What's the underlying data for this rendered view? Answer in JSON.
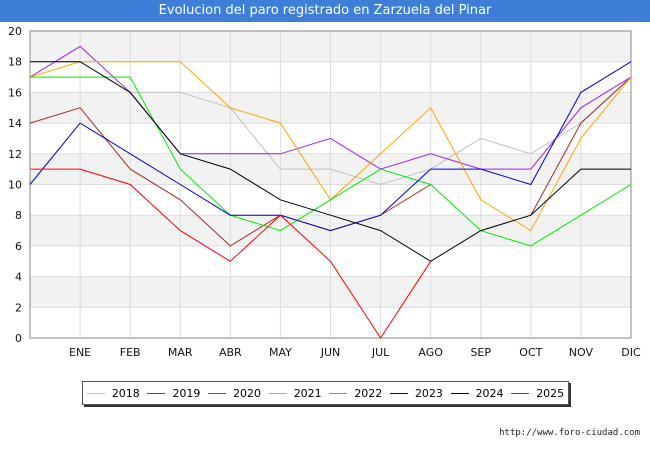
{
  "header": {
    "title": "Evolucion del paro registrado en Zarzuela del Pinar"
  },
  "footer": {
    "source": "http://www.foro-ciudad.com"
  },
  "chart_data": {
    "type": "line",
    "title": "Evolucion del paro registrado en Zarzuela del Pinar",
    "categories": [
      "",
      "ENE",
      "FEB",
      "MAR",
      "ABR",
      "MAY",
      "JUN",
      "JUL",
      "AGO",
      "SEP",
      "OCT",
      "NOV",
      "DIC"
    ],
    "ylim": [
      0,
      20
    ],
    "yticks": [
      0,
      2,
      4,
      6,
      8,
      10,
      12,
      14,
      16,
      18,
      20
    ],
    "grid": true,
    "legend_position": "bottom",
    "series": [
      {
        "name": "2018",
        "color": "#c0c0c0",
        "values": [
          18,
          18,
          16,
          16,
          15,
          11,
          11,
          10,
          11,
          13,
          12,
          14,
          17
        ]
      },
      {
        "name": "2019",
        "color": "#a52a2a",
        "values": [
          14,
          15,
          11,
          9,
          6,
          8,
          7,
          8,
          10,
          null,
          8,
          14,
          17
        ]
      },
      {
        "name": "2020",
        "color": "#a020f0",
        "values": [
          17,
          19,
          16,
          12,
          12,
          12,
          13,
          11,
          12,
          11,
          11,
          15,
          17
        ]
      },
      {
        "name": "2021",
        "color": "#ffa500",
        "values": [
          17,
          18,
          18,
          18,
          15,
          14,
          9,
          12,
          15,
          9,
          7,
          13,
          17
        ]
      },
      {
        "name": "2022",
        "color": "#00ee00",
        "values": [
          17,
          17,
          17,
          11,
          8,
          7,
          9,
          11,
          10,
          7,
          6,
          8,
          10
        ]
      },
      {
        "name": "2023",
        "color": "#0000cd",
        "values": [
          10,
          14,
          12,
          10,
          8,
          8,
          7,
          8,
          11,
          11,
          10,
          16,
          18
        ]
      },
      {
        "name": "2024",
        "color": "#000000",
        "values": [
          18,
          18,
          16,
          12,
          11,
          9,
          8,
          7,
          5,
          7,
          8,
          11,
          11
        ]
      },
      {
        "name": "2025",
        "color": "#ff0000",
        "values": [
          11,
          11,
          10,
          7,
          5,
          8,
          5,
          0,
          5,
          null,
          null,
          null,
          null
        ]
      }
    ]
  }
}
